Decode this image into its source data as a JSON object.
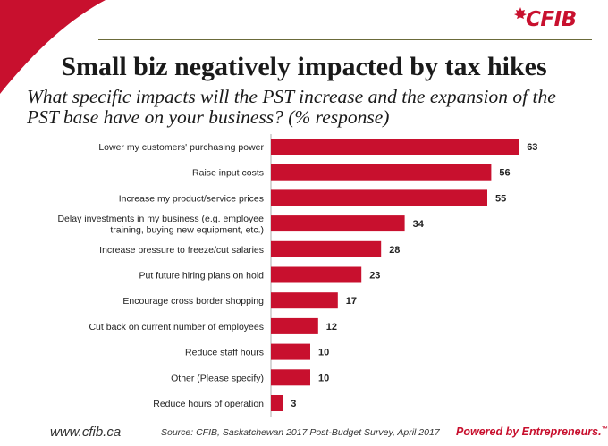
{
  "brand": {
    "logo_text": "CFIB",
    "accent_color": "#c8102e",
    "website": "www.cfib.ca",
    "tagline": "Powered by Entrepreneurs.",
    "tagline_mark": "™"
  },
  "header": {
    "title": "Small biz negatively impacted by tax hikes",
    "subtitle": "What specific impacts will the PST increase and the expansion of the PST base have on your business? (% response)"
  },
  "footer": {
    "source": "Source: CFIB, Saskatchewan 2017 Post-Budget Survey, April 2017"
  },
  "chart_data": {
    "type": "bar",
    "orientation": "horizontal",
    "title": "",
    "xlabel": "",
    "ylabel": "",
    "unit": "% response",
    "xlim": [
      0,
      70
    ],
    "grid": false,
    "bar_color": "#c8102e",
    "categories": [
      [
        "Lower my customers' purchasing power"
      ],
      [
        "Raise input costs"
      ],
      [
        "Increase my product/service prices"
      ],
      [
        "Delay investments in my business (e.g. employee",
        "training, buying new equipment, etc.)"
      ],
      [
        "Increase pressure to freeze/cut salaries"
      ],
      [
        "Put future hiring plans on hold"
      ],
      [
        "Encourage cross border shopping"
      ],
      [
        "Cut back on current number of employees"
      ],
      [
        "Reduce staff hours"
      ],
      [
        "Other (Please specify)"
      ],
      [
        "Reduce hours of operation"
      ]
    ],
    "values": [
      63,
      56,
      55,
      34,
      28,
      23,
      17,
      12,
      10,
      10,
      3
    ]
  }
}
